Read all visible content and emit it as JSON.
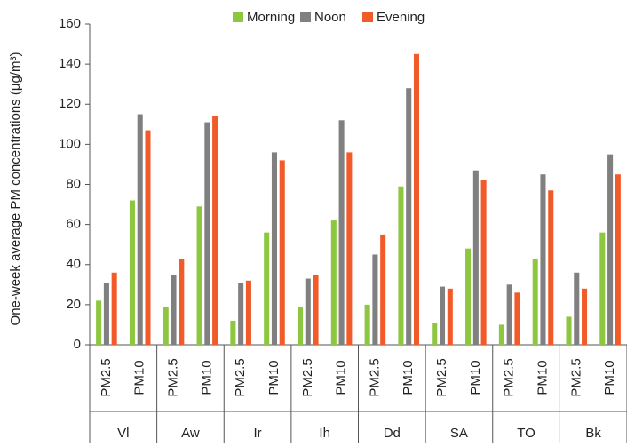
{
  "chart_data": {
    "type": "bar",
    "y_label": "One-week average PM concentrations (μg/m³)",
    "categories": [
      "PM2.5",
      "PM10",
      "PM2.5",
      "PM10",
      "PM2.5",
      "PM10",
      "PM2.5",
      "PM10",
      "PM2.5",
      "PM10",
      "PM2.5",
      "PM10",
      "PM2.5",
      "PM10",
      "PM2.5",
      "PM10"
    ],
    "groups": [
      "Vl",
      "Aw",
      "Ir",
      "Ih",
      "Dd",
      "SA",
      "TO",
      "Bk"
    ],
    "series": [
      {
        "name": "Morning",
        "color": "#8dc63f",
        "values": [
          22,
          72,
          19,
          69,
          12,
          56,
          19,
          62,
          20,
          79,
          11,
          48,
          10,
          43,
          14,
          56
        ]
      },
      {
        "name": "Noon",
        "color": "#808080",
        "values": [
          31,
          115,
          35,
          111,
          31,
          96,
          33,
          112,
          45,
          128,
          29,
          87,
          30,
          85,
          36,
          95
        ]
      },
      {
        "name": "Evening",
        "color": "#f15a29",
        "values": [
          36,
          107,
          43,
          114,
          32,
          92,
          35,
          96,
          55,
          145,
          28,
          82,
          26,
          77,
          28,
          85
        ]
      }
    ],
    "ylim": [
      0,
      160
    ],
    "yticks": [
      0,
      20,
      40,
      60,
      80,
      100,
      120,
      140,
      160
    ],
    "legend": "top"
  }
}
